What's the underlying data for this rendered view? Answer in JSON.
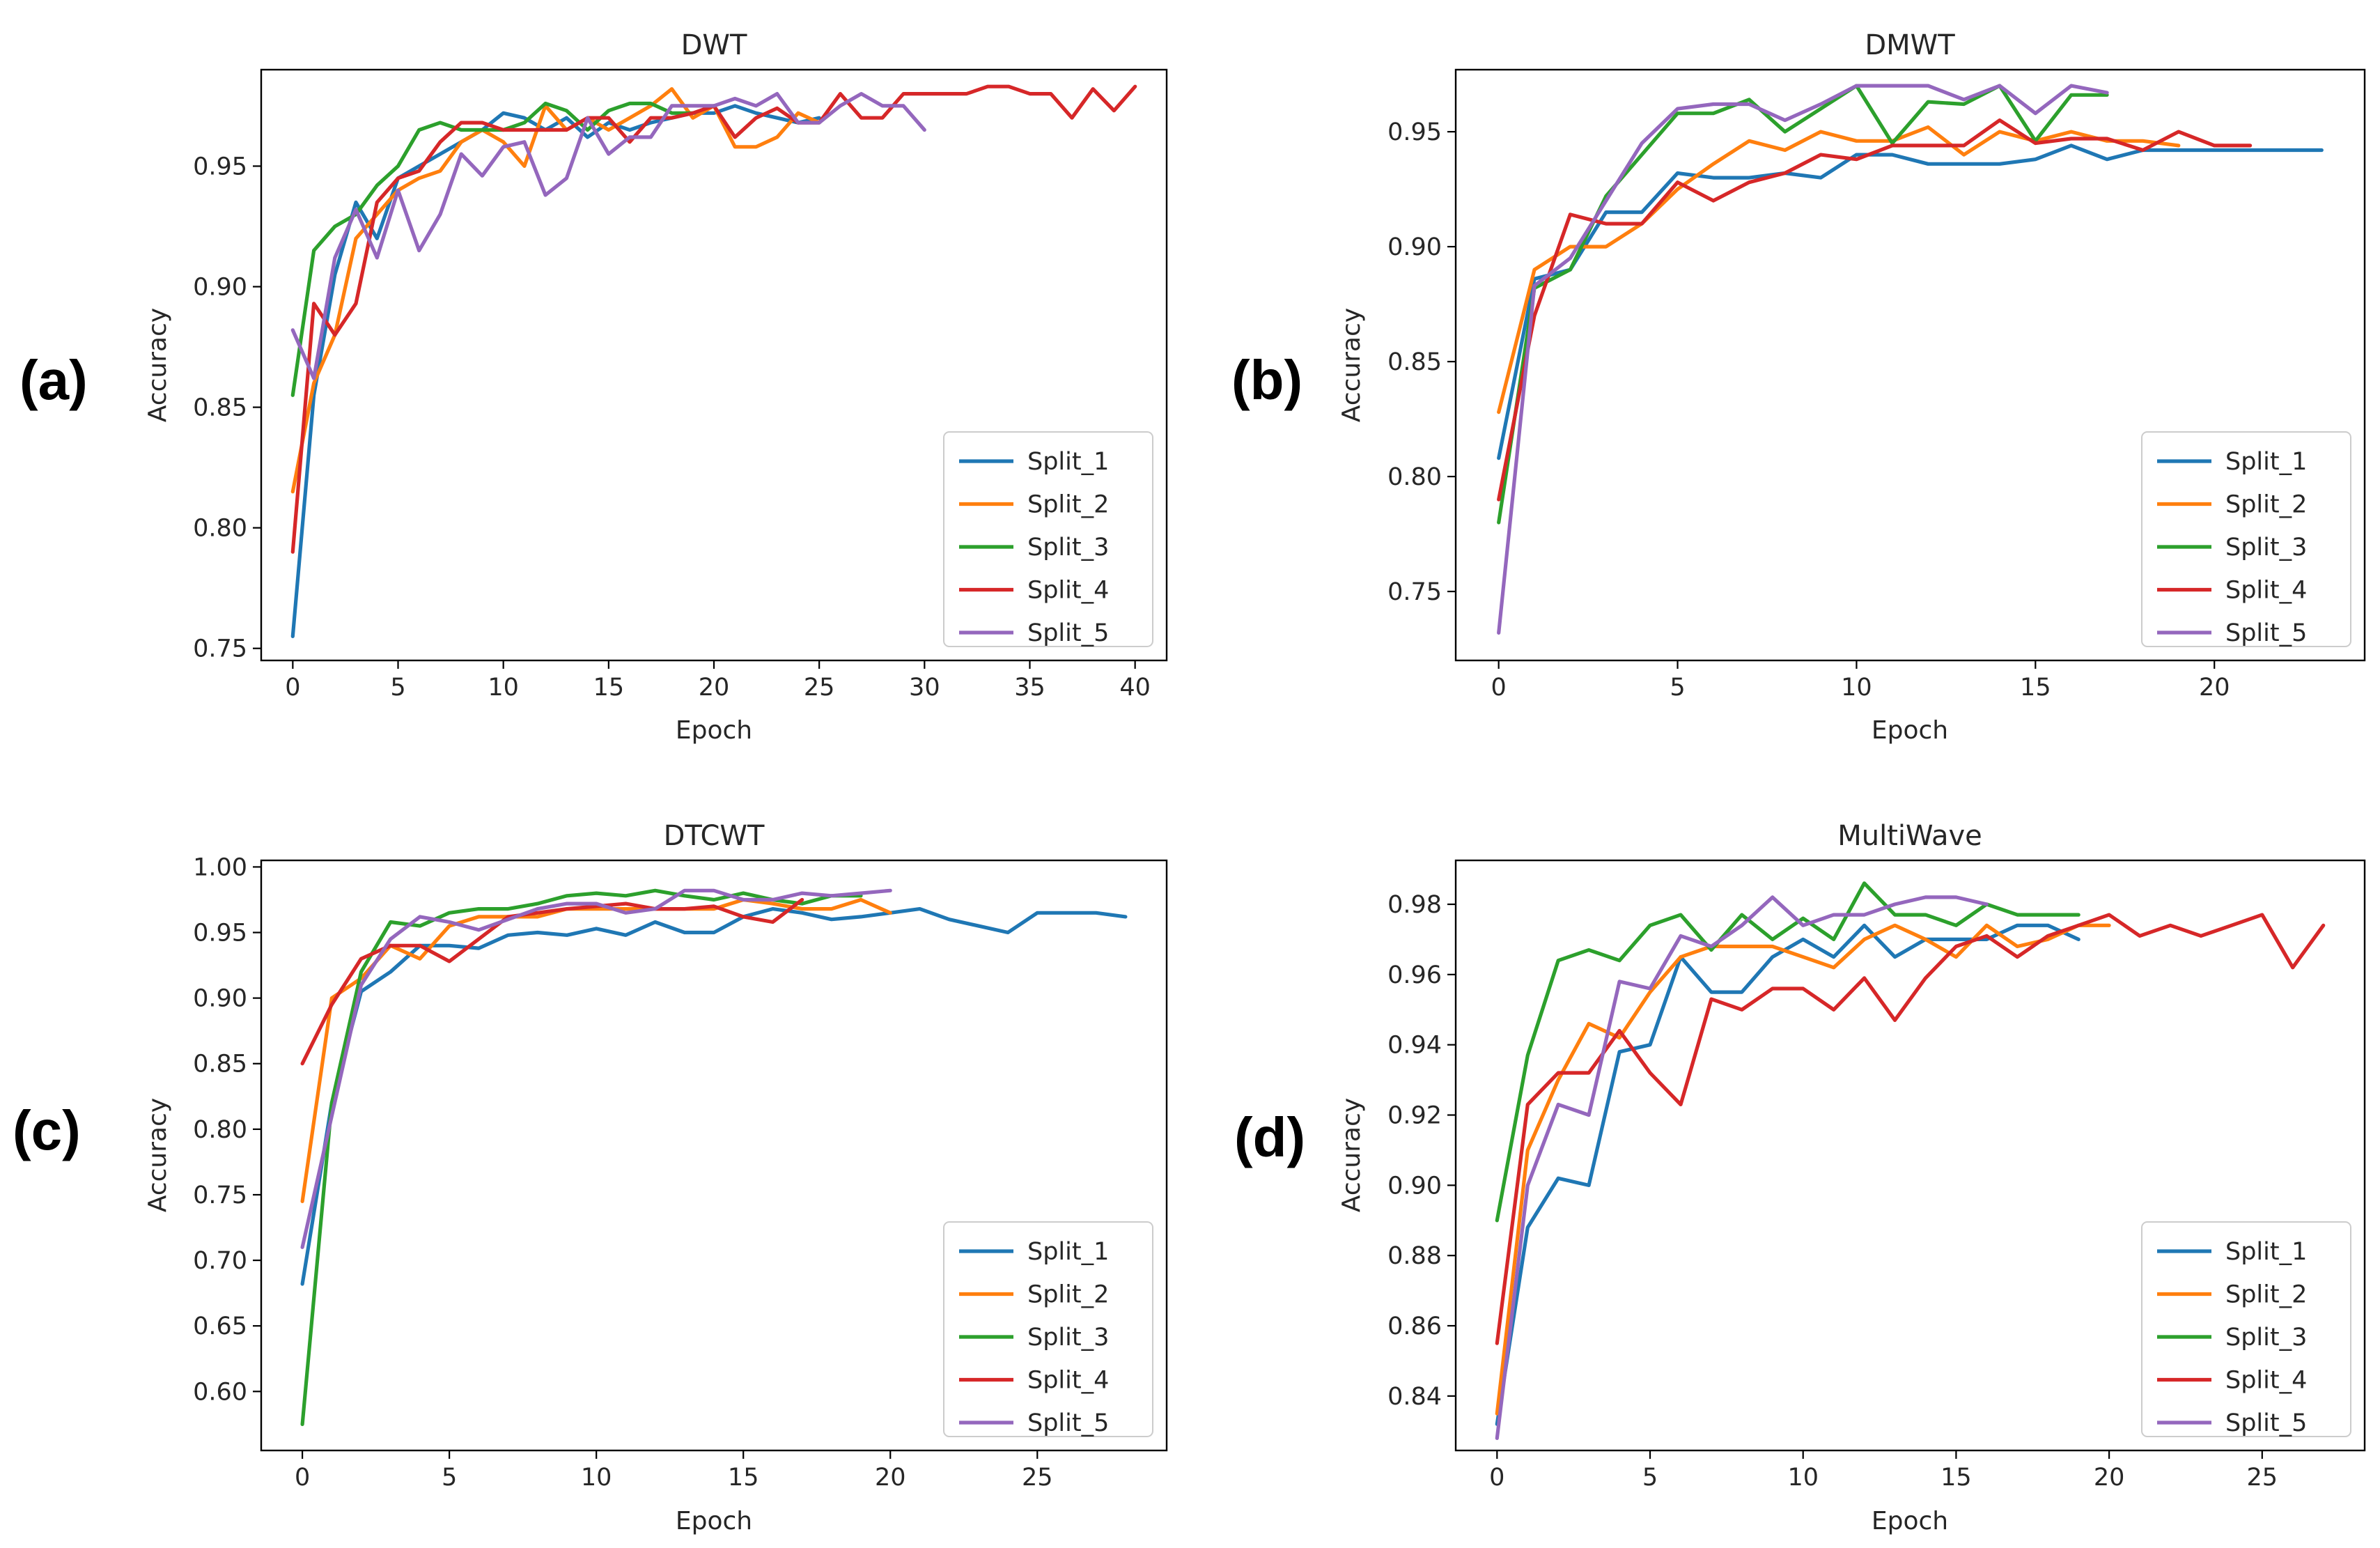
{
  "colors": {
    "Split_1": "#1f77b4",
    "Split_2": "#ff7f0e",
    "Split_3": "#2ca02c",
    "Split_4": "#d62728",
    "Split_5": "#9467bd"
  },
  "chart_data": [
    {
      "type": "line",
      "panel_label": "(a)",
      "title": "DWT",
      "xlabel": "Epoch",
      "ylabel": "Accuracy",
      "xlim": [
        -1.5,
        41.5
      ],
      "ylim": [
        0.745,
        0.99
      ],
      "xticks": [
        0,
        5,
        10,
        15,
        20,
        25,
        30,
        35,
        40
      ],
      "yticks": [
        0.75,
        0.8,
        0.85,
        0.9,
        0.95
      ],
      "ytick_labels": [
        "0.75",
        "0.80",
        "0.85",
        "0.90",
        "0.95"
      ],
      "legend": "lower-right",
      "series": [
        {
          "name": "Split_1",
          "values": [
            0.755,
            0.855,
            0.905,
            0.935,
            0.92,
            0.945,
            0.95,
            0.955,
            0.96,
            0.965,
            0.972,
            0.97,
            0.965,
            0.97,
            0.962,
            0.968,
            0.965,
            0.968,
            0.97,
            0.972,
            0.972,
            0.975,
            0.972,
            0.97,
            0.968,
            0.97
          ]
        },
        {
          "name": "Split_2",
          "values": [
            0.815,
            0.86,
            0.88,
            0.92,
            0.93,
            0.94,
            0.945,
            0.948,
            0.96,
            0.965,
            0.96,
            0.95,
            0.975,
            0.965,
            0.97,
            0.965,
            0.97,
            0.975,
            0.982,
            0.97,
            0.975,
            0.958,
            0.958,
            0.962,
            0.972,
            0.968
          ]
        },
        {
          "name": "Split_3",
          "values": [
            0.855,
            0.915,
            0.925,
            0.93,
            0.942,
            0.95,
            0.965,
            0.968,
            0.965,
            0.965,
            0.965,
            0.968,
            0.976,
            0.973,
            0.965,
            0.973,
            0.976,
            0.976,
            0.972,
            0.972
          ]
        },
        {
          "name": "Split_4",
          "values": [
            0.79,
            0.893,
            0.88,
            0.893,
            0.935,
            0.945,
            0.948,
            0.96,
            0.968,
            0.968,
            0.965,
            0.965,
            0.965,
            0.965,
            0.97,
            0.97,
            0.96,
            0.97,
            0.97,
            0.972,
            0.975,
            0.962,
            0.97,
            0.974,
            0.968,
            0.968,
            0.98,
            0.97,
            0.97,
            0.98,
            0.98,
            0.98,
            0.98,
            0.983,
            0.983,
            0.98,
            0.98,
            0.97,
            0.982,
            0.973,
            0.983
          ]
        },
        {
          "name": "Split_5",
          "values": [
            0.882,
            0.862,
            0.912,
            0.932,
            0.912,
            0.94,
            0.915,
            0.93,
            0.955,
            0.946,
            0.958,
            0.96,
            0.938,
            0.945,
            0.97,
            0.955,
            0.962,
            0.962,
            0.975,
            0.975,
            0.975,
            0.978,
            0.975,
            0.98,
            0.968,
            0.968,
            0.975,
            0.98,
            0.975,
            0.975,
            0.965
          ]
        }
      ]
    },
    {
      "type": "line",
      "panel_label": "(b)",
      "title": "DMWT",
      "xlabel": "Epoch",
      "ylabel": "Accuracy",
      "xlim": [
        -1.2,
        24.2
      ],
      "ylim": [
        0.72,
        0.977
      ],
      "xticks": [
        0,
        5,
        10,
        15,
        20
      ],
      "yticks": [
        0.75,
        0.8,
        0.85,
        0.9,
        0.95
      ],
      "ytick_labels": [
        "0.75",
        "0.80",
        "0.85",
        "0.90",
        "0.95"
      ],
      "legend": "lower-right",
      "series": [
        {
          "name": "Split_1",
          "values": [
            0.808,
            0.886,
            0.89,
            0.915,
            0.915,
            0.932,
            0.93,
            0.93,
            0.932,
            0.93,
            0.94,
            0.94,
            0.936,
            0.936,
            0.936,
            0.938,
            0.944,
            0.938,
            0.942,
            0.942,
            0.942,
            0.942,
            0.942,
            0.942
          ]
        },
        {
          "name": "Split_2",
          "values": [
            0.828,
            0.89,
            0.9,
            0.9,
            0.91,
            0.925,
            0.936,
            0.946,
            0.942,
            0.95,
            0.946,
            0.946,
            0.952,
            0.94,
            0.95,
            0.946,
            0.95,
            0.946,
            0.946,
            0.944
          ]
        },
        {
          "name": "Split_3",
          "values": [
            0.78,
            0.882,
            0.89,
            0.922,
            0.94,
            0.958,
            0.958,
            0.964,
            0.95,
            0.96,
            0.97,
            0.945,
            0.963,
            0.962,
            0.97,
            0.946,
            0.966,
            0.966
          ]
        },
        {
          "name": "Split_4",
          "values": [
            0.79,
            0.87,
            0.914,
            0.91,
            0.91,
            0.928,
            0.92,
            0.928,
            0.932,
            0.94,
            0.938,
            0.944,
            0.944,
            0.944,
            0.955,
            0.945,
            0.947,
            0.947,
            0.942,
            0.95,
            0.944,
            0.944
          ]
        },
        {
          "name": "Split_5",
          "values": [
            0.732,
            0.883,
            0.895,
            0.92,
            0.945,
            0.96,
            0.962,
            0.962,
            0.955,
            0.962,
            0.97,
            0.97,
            0.97,
            0.964,
            0.97,
            0.958,
            0.97,
            0.967
          ]
        }
      ]
    },
    {
      "type": "line",
      "panel_label": "(c)",
      "title": "DTCWT",
      "xlabel": "Epoch",
      "ylabel": "Accuracy",
      "xlim": [
        -1.4,
        29.4
      ],
      "ylim": [
        0.555,
        1.005
      ],
      "xticks": [
        0,
        5,
        10,
        15,
        20,
        25
      ],
      "yticks": [
        0.6,
        0.65,
        0.7,
        0.75,
        0.8,
        0.85,
        0.9,
        0.95,
        1.0
      ],
      "ytick_labels": [
        "0.60",
        "0.65",
        "0.70",
        "0.75",
        "0.80",
        "0.85",
        "0.90",
        "0.95",
        "1.00"
      ],
      "legend": "lower-right",
      "series": [
        {
          "name": "Split_1",
          "values": [
            0.682,
            0.82,
            0.905,
            0.92,
            0.94,
            0.94,
            0.938,
            0.948,
            0.95,
            0.948,
            0.953,
            0.948,
            0.958,
            0.95,
            0.95,
            0.962,
            0.968,
            0.965,
            0.96,
            0.962,
            0.965,
            0.968,
            0.96,
            0.955,
            0.95,
            0.965,
            0.965,
            0.965,
            0.962
          ]
        },
        {
          "name": "Split_2",
          "values": [
            0.745,
            0.9,
            0.915,
            0.94,
            0.93,
            0.955,
            0.962,
            0.962,
            0.962,
            0.968,
            0.968,
            0.968,
            0.968,
            0.968,
            0.968,
            0.975,
            0.972,
            0.968,
            0.968,
            0.975,
            0.965
          ]
        },
        {
          "name": "Split_3",
          "values": [
            0.575,
            0.82,
            0.92,
            0.958,
            0.955,
            0.965,
            0.968,
            0.968,
            0.972,
            0.978,
            0.98,
            0.978,
            0.982,
            0.978,
            0.975,
            0.98,
            0.975,
            0.972,
            0.978,
            0.978
          ]
        },
        {
          "name": "Split_4",
          "values": [
            0.85,
            0.895,
            0.93,
            0.94,
            0.94,
            0.928,
            0.945,
            0.962,
            0.965,
            0.968,
            0.97,
            0.972,
            0.968,
            0.968,
            0.97,
            0.962,
            0.958,
            0.975
          ]
        },
        {
          "name": "Split_5",
          "values": [
            0.71,
            0.81,
            0.91,
            0.945,
            0.962,
            0.958,
            0.952,
            0.96,
            0.968,
            0.972,
            0.972,
            0.965,
            0.968,
            0.982,
            0.982,
            0.975,
            0.975,
            0.98,
            0.978,
            0.98,
            0.982
          ]
        }
      ]
    },
    {
      "type": "line",
      "panel_label": "(d)",
      "title": "MultiWave",
      "xlabel": "Epoch",
      "ylabel": "Accuracy",
      "xlim": [
        -1.35,
        28.35
      ],
      "ylim": [
        0.8245,
        0.9925
      ],
      "xticks": [
        0,
        5,
        10,
        15,
        20,
        25
      ],
      "yticks": [
        0.84,
        0.86,
        0.88,
        0.9,
        0.92,
        0.94,
        0.96,
        0.98
      ],
      "ytick_labels": [
        "0.84",
        "0.86",
        "0.88",
        "0.90",
        "0.92",
        "0.94",
        "0.96",
        "0.98"
      ],
      "legend": "lower-right",
      "series": [
        {
          "name": "Split_1",
          "values": [
            0.832,
            0.888,
            0.902,
            0.9,
            0.938,
            0.94,
            0.965,
            0.955,
            0.955,
            0.965,
            0.97,
            0.965,
            0.974,
            0.965,
            0.97,
            0.97,
            0.97,
            0.974,
            0.974,
            0.97
          ]
        },
        {
          "name": "Split_2",
          "values": [
            0.835,
            0.91,
            0.93,
            0.946,
            0.942,
            0.955,
            0.965,
            0.968,
            0.968,
            0.968,
            0.965,
            0.962,
            0.97,
            0.974,
            0.97,
            0.965,
            0.974,
            0.968,
            0.97,
            0.974,
            0.974
          ]
        },
        {
          "name": "Split_3",
          "values": [
            0.89,
            0.937,
            0.964,
            0.967,
            0.964,
            0.974,
            0.977,
            0.967,
            0.977,
            0.97,
            0.976,
            0.97,
            0.986,
            0.977,
            0.977,
            0.974,
            0.98,
            0.977,
            0.977,
            0.977
          ]
        },
        {
          "name": "Split_4",
          "values": [
            0.855,
            0.923,
            0.932,
            0.932,
            0.944,
            0.932,
            0.923,
            0.953,
            0.95,
            0.956,
            0.956,
            0.95,
            0.959,
            0.947,
            0.959,
            0.968,
            0.971,
            0.965,
            0.971,
            0.974,
            0.977,
            0.971,
            0.974,
            0.971,
            0.974,
            0.977,
            0.962,
            0.974
          ]
        },
        {
          "name": "Split_5",
          "values": [
            0.828,
            0.9,
            0.923,
            0.92,
            0.958,
            0.956,
            0.971,
            0.968,
            0.974,
            0.982,
            0.974,
            0.977,
            0.977,
            0.98,
            0.982,
            0.982,
            0.98
          ]
        }
      ]
    }
  ]
}
